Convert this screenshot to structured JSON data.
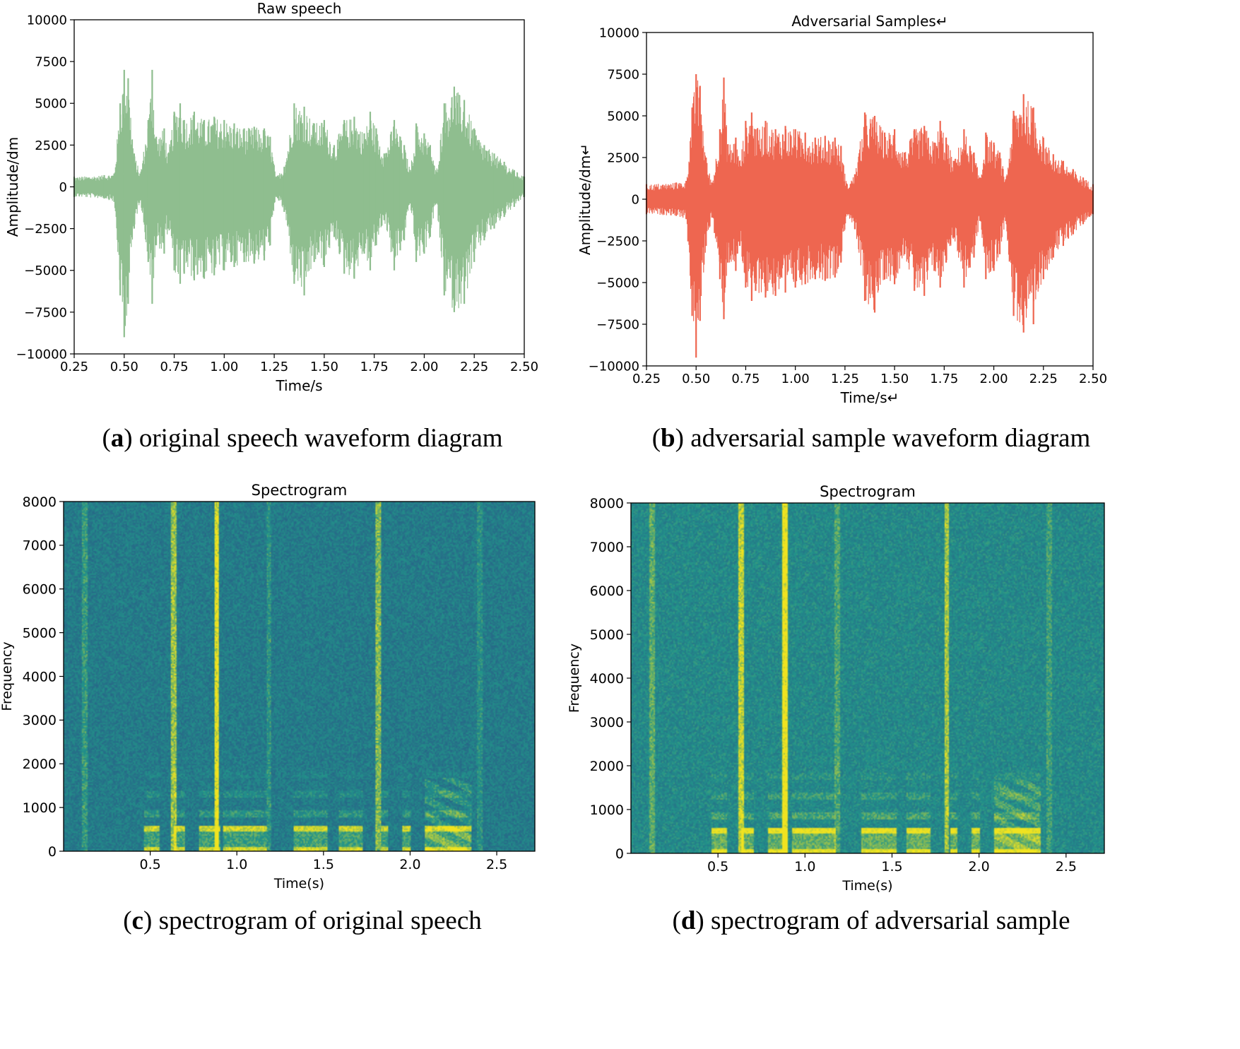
{
  "colors": {
    "raw_wave": "#8fbe8f",
    "adv_wave": "#ee6650",
    "axis": "#000000",
    "spec_low": "#2a4f86",
    "spec_mid": "#22948a",
    "spec_high": "#f0e320"
  },
  "chart_data": [
    {
      "id": "a",
      "type": "area",
      "title": "Raw speech",
      "xlabel": "Time/s",
      "ylabel": "Amplitude/dm",
      "xlim": [
        0.25,
        2.5
      ],
      "ylim": [
        -10000,
        10000
      ],
      "xticks": [
        0.25,
        0.5,
        0.75,
        1.0,
        1.25,
        1.5,
        1.75,
        2.0,
        2.25,
        2.5
      ],
      "xtick_labels": [
        "0.25",
        "0.50",
        "0.75",
        "1.00",
        "1.25",
        "1.50",
        "1.75",
        "2.00",
        "2.25",
        "2.50"
      ],
      "yticks": [
        10000,
        7500,
        5000,
        2500,
        0,
        -2500,
        -5000,
        -7500,
        -10000
      ],
      "ytick_labels": [
        "10000",
        "7500",
        "5000",
        "2500",
        "0",
        "−2500",
        "−5000",
        "−7500",
        "−10000"
      ],
      "caption_letter": "a",
      "caption": " original speech waveform diagram",
      "envelope": {
        "x": [
          0.25,
          0.4,
          0.45,
          0.48,
          0.5,
          0.52,
          0.55,
          0.58,
          0.62,
          0.64,
          0.66,
          0.7,
          0.72,
          0.75,
          0.78,
          0.8,
          0.85,
          0.9,
          0.95,
          1.0,
          1.05,
          1.1,
          1.15,
          1.2,
          1.23,
          1.26,
          1.3,
          1.35,
          1.4,
          1.45,
          1.5,
          1.55,
          1.6,
          1.65,
          1.7,
          1.73,
          1.76,
          1.8,
          1.85,
          1.88,
          1.9,
          1.93,
          1.96,
          2.0,
          2.03,
          2.06,
          2.1,
          2.15,
          2.2,
          2.25,
          2.3,
          2.35,
          2.4,
          2.45,
          2.5
        ],
        "upper": [
          600,
          700,
          800,
          5000,
          7000,
          6500,
          2000,
          800,
          4000,
          7000,
          3000,
          3500,
          2000,
          4500,
          5000,
          4000,
          4500,
          4000,
          4200,
          4000,
          3800,
          3500,
          3600,
          3500,
          3000,
          600,
          1200,
          5000,
          4800,
          3800,
          4000,
          2500,
          4000,
          4200,
          3200,
          4500,
          3500,
          2000,
          4000,
          3000,
          2500,
          1000,
          3800,
          3200,
          2500,
          900,
          5000,
          6000,
          5200,
          3500,
          2500,
          2000,
          1500,
          1000,
          600
        ],
        "lower": [
          -600,
          -700,
          -900,
          -6500,
          -9000,
          -7000,
          -2500,
          -800,
          -4500,
          -7000,
          -3500,
          -4000,
          -2500,
          -5000,
          -5800,
          -5200,
          -5600,
          -5500,
          -5300,
          -5000,
          -4800,
          -4500,
          -4600,
          -4400,
          -3500,
          -600,
          -1500,
          -5800,
          -6500,
          -4500,
          -4800,
          -3000,
          -5200,
          -5500,
          -4000,
          -5000,
          -3500,
          -2000,
          -5000,
          -3800,
          -3200,
          -1000,
          -4500,
          -4000,
          -3000,
          -1000,
          -6500,
          -7500,
          -7000,
          -4500,
          -3200,
          -2500,
          -1800,
          -1200,
          -600
        ]
      }
    },
    {
      "id": "b",
      "type": "area",
      "title": "Adversarial Samples↵",
      "xlabel": "Time/s↵",
      "ylabel": "Amplitude/dm↵",
      "xlim": [
        0.25,
        2.5
      ],
      "ylim": [
        -10000,
        10000
      ],
      "xticks": [
        0.25,
        0.5,
        0.75,
        1.0,
        1.25,
        1.5,
        1.75,
        2.0,
        2.25,
        2.5
      ],
      "xtick_labels": [
        "0.25",
        "0.50",
        "0.75",
        "1.00",
        "1.25",
        "1.50",
        "1.75",
        "2.00",
        "2.25",
        "2.50"
      ],
      "yticks": [
        10000,
        7500,
        5000,
        2500,
        0,
        -2500,
        -5000,
        -7500,
        -10000
      ],
      "ytick_labels": [
        "10000",
        "7500",
        "5000",
        "2500",
        "0",
        "−2500",
        "−5000",
        "−7500",
        "−10000"
      ],
      "caption_letter": "b",
      "caption": " adversarial sample waveform diagram",
      "envelope": {
        "x": [
          0.25,
          0.4,
          0.45,
          0.48,
          0.5,
          0.52,
          0.55,
          0.58,
          0.62,
          0.64,
          0.66,
          0.7,
          0.72,
          0.75,
          0.78,
          0.8,
          0.85,
          0.9,
          0.95,
          1.0,
          1.05,
          1.1,
          1.15,
          1.2,
          1.23,
          1.26,
          1.3,
          1.35,
          1.4,
          1.45,
          1.5,
          1.55,
          1.6,
          1.65,
          1.7,
          1.73,
          1.76,
          1.8,
          1.85,
          1.88,
          1.9,
          1.93,
          1.96,
          2.0,
          2.03,
          2.06,
          2.1,
          2.15,
          2.2,
          2.25,
          2.3,
          2.35,
          2.4,
          2.45,
          2.5
        ],
        "upper": [
          900,
          1000,
          1100,
          5500,
          7500,
          6800,
          2500,
          1000,
          4200,
          7300,
          3300,
          3700,
          2300,
          4700,
          5200,
          4200,
          4700,
          4200,
          4400,
          4200,
          4000,
          3700,
          3800,
          3700,
          3200,
          900,
          1500,
          5200,
          5000,
          4000,
          4200,
          2800,
          4200,
          4400,
          3400,
          4700,
          3700,
          2300,
          4200,
          3200,
          2800,
          1300,
          4000,
          3400,
          2800,
          1200,
          5300,
          6300,
          5500,
          3700,
          2700,
          2300,
          1800,
          1300,
          900
        ],
        "lower": [
          -900,
          -1000,
          -1200,
          -7000,
          -9500,
          -7300,
          -2800,
          -1100,
          -4800,
          -7200,
          -3800,
          -4300,
          -2800,
          -5300,
          -6100,
          -5500,
          -5900,
          -5800,
          -5600,
          -5300,
          -5100,
          -4800,
          -4900,
          -4700,
          -3800,
          -900,
          -1800,
          -6100,
          -6800,
          -4800,
          -5100,
          -3300,
          -5500,
          -5800,
          -4300,
          -5300,
          -3800,
          -2300,
          -5300,
          -4100,
          -3500,
          -1300,
          -4800,
          -4300,
          -3300,
          -1300,
          -7000,
          -8000,
          -7500,
          -4800,
          -3500,
          -2800,
          -2100,
          -1500,
          -900
        ]
      }
    },
    {
      "id": "c",
      "type": "heatmap",
      "title": "Spectrogram",
      "xlabel": "Time(s)",
      "ylabel": "Frequency",
      "xlim": [
        0.0,
        2.72
      ],
      "ylim": [
        0,
        8000
      ],
      "xticks": [
        0.5,
        1.0,
        1.5,
        2.0,
        2.5
      ],
      "xtick_labels": [
        "0.5",
        "1.0",
        "1.5",
        "2.0",
        "2.5"
      ],
      "yticks": [
        0,
        1000,
        2000,
        3000,
        4000,
        5000,
        6000,
        7000,
        8000
      ],
      "ytick_labels": [
        "0",
        "1000",
        "2000",
        "3000",
        "4000",
        "5000",
        "6000",
        "7000",
        "8000"
      ],
      "caption_letter": "c",
      "caption": " spectrogram of original speech",
      "background_intensity": 0.32,
      "voiced_segments": [
        [
          0.46,
          0.55
        ],
        [
          0.63,
          0.7
        ],
        [
          0.78,
          0.9
        ],
        [
          0.92,
          1.17
        ],
        [
          1.32,
          1.52
        ],
        [
          1.58,
          1.72
        ],
        [
          1.83,
          1.87
        ],
        [
          1.95,
          2.0
        ],
        [
          2.08,
          2.35
        ]
      ],
      "broadband_streaks": [
        [
          0.12,
          0.3
        ],
        [
          0.63,
          0.65
        ],
        [
          0.88,
          0.92
        ],
        [
          1.18,
          0.25
        ],
        [
          1.81,
          0.55
        ],
        [
          2.4,
          0.2
        ]
      ]
    },
    {
      "id": "d",
      "type": "heatmap",
      "title": "Spectrogram",
      "xlabel": "Time(s)",
      "ylabel": "Frequency",
      "xlim": [
        0.0,
        2.72
      ],
      "ylim": [
        0,
        8000
      ],
      "xticks": [
        0.5,
        1.0,
        1.5,
        2.0,
        2.5
      ],
      "xtick_labels": [
        "0.5",
        "1.0",
        "1.5",
        "2.0",
        "2.5"
      ],
      "yticks": [
        0,
        1000,
        2000,
        3000,
        4000,
        5000,
        6000,
        7000,
        8000
      ],
      "ytick_labels": [
        "0",
        "1000",
        "2000",
        "3000",
        "4000",
        "5000",
        "6000",
        "7000",
        "8000"
      ],
      "caption_letter": "d",
      "caption": " spectrogram of adversarial sample",
      "background_intensity": 0.42,
      "voiced_segments": [
        [
          0.46,
          0.55
        ],
        [
          0.63,
          0.7
        ],
        [
          0.78,
          0.9
        ],
        [
          0.92,
          1.17
        ],
        [
          1.32,
          1.52
        ],
        [
          1.58,
          1.72
        ],
        [
          1.83,
          1.87
        ],
        [
          1.95,
          2.0
        ],
        [
          2.08,
          2.35
        ]
      ],
      "broadband_streaks": [
        [
          0.12,
          0.3
        ],
        [
          0.63,
          0.65
        ],
        [
          0.88,
          0.92
        ],
        [
          1.18,
          0.25
        ],
        [
          1.81,
          0.55
        ],
        [
          2.4,
          0.2
        ]
      ]
    }
  ]
}
